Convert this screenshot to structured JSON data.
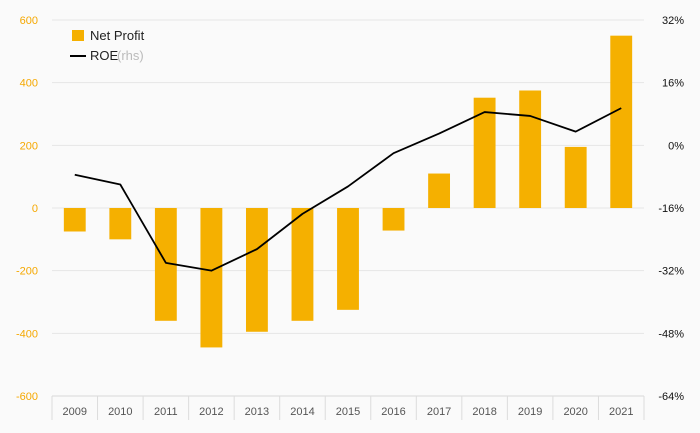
{
  "chart_data": {
    "type": "bar",
    "categories": [
      "2009",
      "2010",
      "2011",
      "2012",
      "2013",
      "2014",
      "2015",
      "2016",
      "2017",
      "2018",
      "2019",
      "2020",
      "2021"
    ],
    "series": [
      {
        "name": "Net Profit",
        "type": "bar",
        "axis": "left",
        "color": "#f5b000",
        "values": [
          -75,
          -100,
          -360,
          -445,
          -395,
          -360,
          -325,
          -72,
          110,
          352,
          375,
          195,
          550
        ]
      },
      {
        "name": "ROE",
        "name_note": "(rhs)",
        "type": "line",
        "axis": "right",
        "color": "#000000",
        "values": [
          -7.5,
          -10,
          -30,
          -32,
          -26.5,
          -17.5,
          -10.5,
          -2,
          3,
          8.5,
          7.5,
          3.5,
          9.5
        ]
      }
    ],
    "y_left": {
      "ylim": [
        -600,
        600
      ],
      "ticks": [
        "600",
        "400",
        "200",
        "0",
        "-200",
        "-400",
        "-600"
      ],
      "tick_values": [
        600,
        400,
        200,
        0,
        -200,
        -400,
        -600
      ]
    },
    "y_right": {
      "ylim": [
        -64,
        32
      ],
      "ticks": [
        "32%",
        "16%",
        "0%",
        "-16%",
        "-32%",
        "-48%",
        "-64%"
      ],
      "tick_values": [
        32,
        16,
        0,
        -16,
        -32,
        -48,
        -64
      ]
    },
    "legend": {
      "position": "top-left"
    },
    "colors": {
      "bar": "#f5b000",
      "line": "#000000",
      "grid": "#e6e6e6",
      "left_tick": "#f5a800"
    }
  }
}
